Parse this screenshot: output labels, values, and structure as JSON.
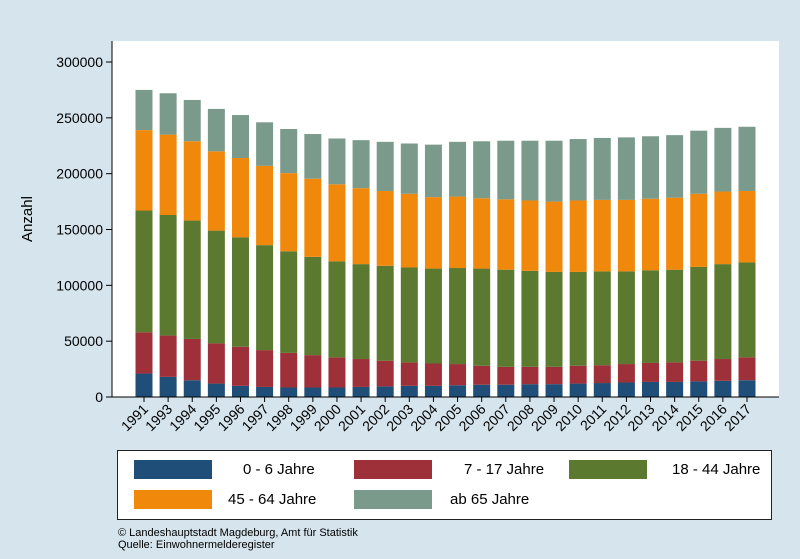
{
  "chart_data": {
    "type": "bar",
    "stacked": true,
    "ylabel": "Anzahl",
    "xlabel": "",
    "ylim": [
      0,
      300000
    ],
    "yticks": [
      "0",
      "50000",
      "100000",
      "150000",
      "200000",
      "250000",
      "300000"
    ],
    "grid": false,
    "legend_position": "bottom",
    "categories": [
      "1991",
      "1993",
      "1994",
      "1995",
      "1996",
      "1997",
      "1998",
      "1999",
      "2000",
      "2001",
      "2002",
      "2003",
      "2004",
      "2005",
      "2006",
      "2007",
      "2008",
      "2009",
      "2010",
      "2011",
      "2012",
      "2013",
      "2014",
      "2015",
      "2016",
      "2017"
    ],
    "series": [
      {
        "name": "0 - 6 Jahre",
        "color": "#1f4e79",
        "values": [
          21000,
          18000,
          15000,
          12000,
          10000,
          9000,
          8500,
          8500,
          8500,
          9000,
          9500,
          10000,
          10000,
          10500,
          11000,
          11000,
          11500,
          11500,
          12000,
          12500,
          13000,
          13500,
          13500,
          14000,
          14500,
          15000
        ]
      },
      {
        "name": "7 - 17 Jahre",
        "color": "#9e3039",
        "values": [
          37000,
          37000,
          37000,
          36000,
          35000,
          33000,
          31000,
          29000,
          27000,
          25000,
          23000,
          21000,
          20000,
          19000,
          17000,
          16000,
          15500,
          15500,
          16000,
          16000,
          16500,
          17000,
          17500,
          18500,
          19500,
          20500
        ]
      },
      {
        "name": "18 - 44 Jahre",
        "color": "#5b7a2f",
        "values": [
          109000,
          108000,
          106000,
          101000,
          98000,
          94000,
          91000,
          88000,
          86000,
          85000,
          85000,
          85000,
          85000,
          86000,
          87000,
          87000,
          86000,
          85000,
          84000,
          84000,
          83000,
          83000,
          83000,
          84000,
          85000,
          85000
        ]
      },
      {
        "name": "45 - 64 Jahre",
        "color": "#f0880b",
        "values": [
          72000,
          72000,
          71000,
          71000,
          71000,
          71000,
          70000,
          70000,
          69000,
          68000,
          67000,
          66000,
          64000,
          64000,
          63000,
          63000,
          63000,
          63000,
          64000,
          64000,
          64000,
          64000,
          64500,
          65500,
          65000,
          64000
        ]
      },
      {
        "name": "ab 65 Jahre",
        "color": "#7a9a8c",
        "values": [
          36000,
          37000,
          37000,
          38000,
          38500,
          39000,
          39500,
          40000,
          41000,
          43000,
          44000,
          45000,
          47000,
          49000,
          51000,
          52500,
          53500,
          54500,
          55000,
          55500,
          56000,
          56000,
          56000,
          56500,
          57000,
          57500
        ]
      }
    ]
  },
  "footer": {
    "copyright": "©  Landeshauptstadt Magdeburg, Amt für Statistik",
    "source": "Quelle: Einwohnermelderegister"
  }
}
